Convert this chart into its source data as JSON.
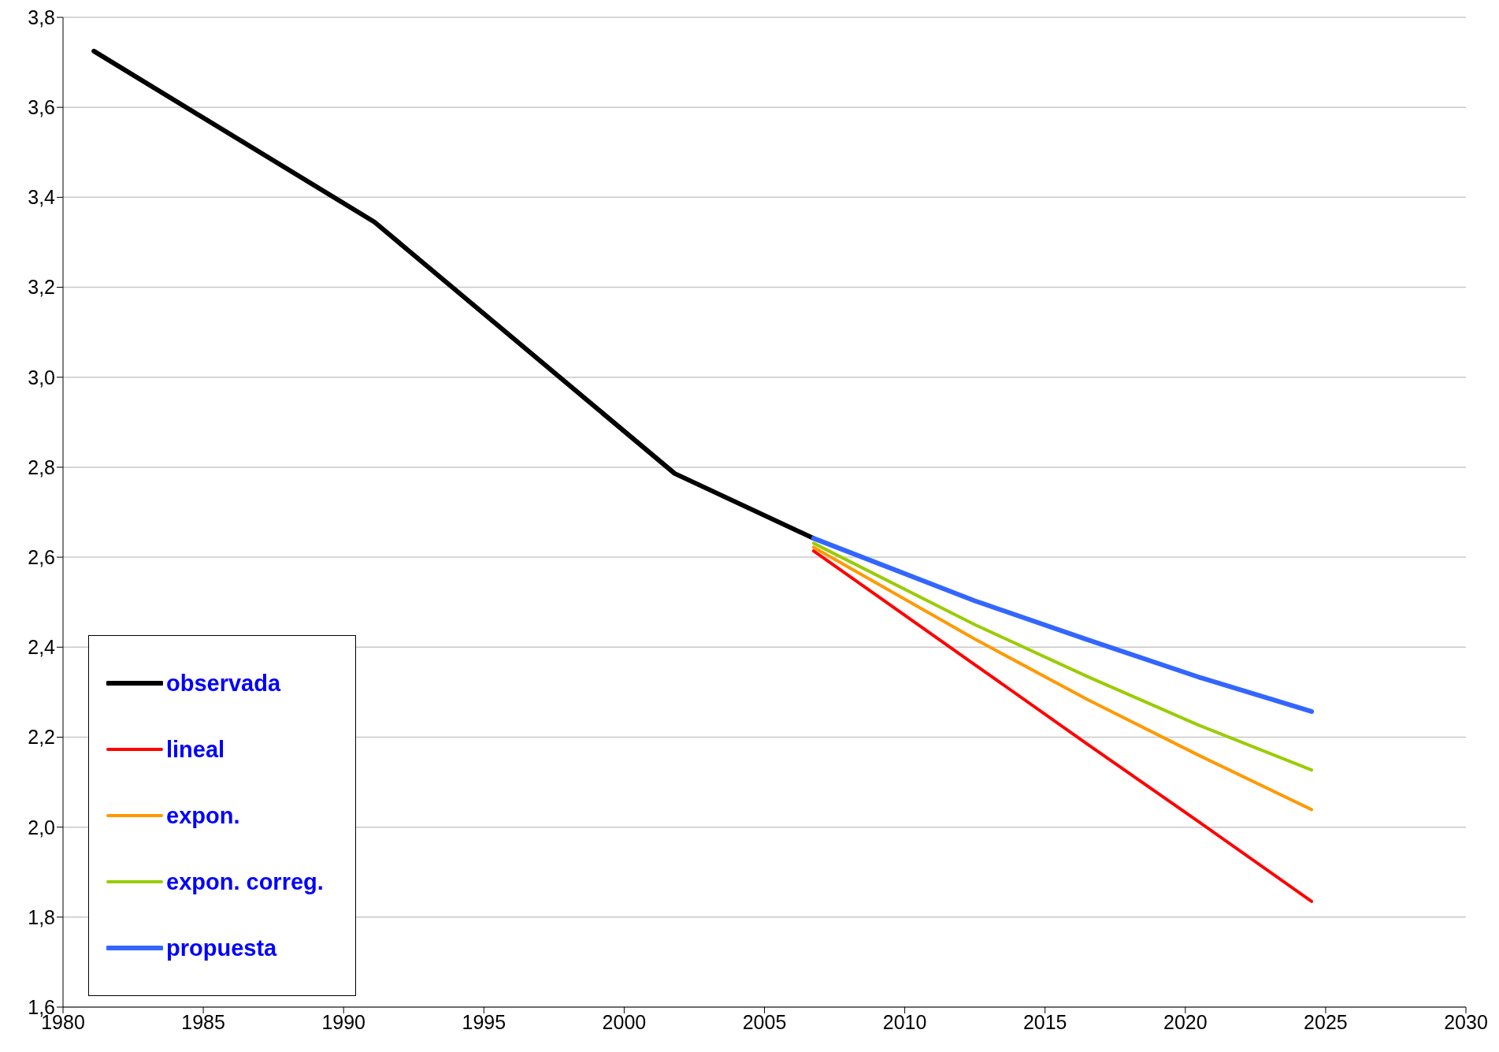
{
  "chart_data": {
    "type": "line",
    "xlim": [
      1980,
      2030
    ],
    "xticks": [
      1980,
      1985,
      1990,
      1995,
      2000,
      2005,
      2010,
      2015,
      2020,
      2025,
      2030
    ],
    "ylim": [
      1.6,
      3.8
    ],
    "yticks": [
      {
        "value": 1.6,
        "label": "1,6"
      },
      {
        "value": 1.8,
        "label": "1,8"
      },
      {
        "value": 2.0,
        "label": "2,0"
      },
      {
        "value": 2.2,
        "label": "2,2"
      },
      {
        "value": 2.4,
        "label": "2,4"
      },
      {
        "value": 2.6,
        "label": "2,6"
      },
      {
        "value": 2.8,
        "label": "2,8"
      },
      {
        "value": 3.0,
        "label": "3,0"
      },
      {
        "value": 3.2,
        "label": "3,2"
      },
      {
        "value": 3.4,
        "label": "3,4"
      },
      {
        "value": 3.6,
        "label": "3,6"
      },
      {
        "value": 3.8,
        "label": "3,8"
      }
    ],
    "grid": "y",
    "legend": "bottom left",
    "marker": "none",
    "line_style": "solid",
    "series": [
      {
        "name": "observada",
        "color": "#000000",
        "x": [
          1981.1,
          1991.1,
          2001.8,
          2006.75
        ],
        "values": [
          3.725,
          3.345,
          2.786,
          2.642
        ]
      },
      {
        "name": "lineal",
        "color": "#ff0000",
        "x": [
          2006.75,
          2012.5,
          2016.5,
          2020.5,
          2024.5
        ],
        "values": [
          2.614,
          2.361,
          2.185,
          2.011,
          1.835
        ]
      },
      {
        "name": "expon.",
        "color": "#ff9900",
        "x": [
          2006.75,
          2012.5,
          2016.5,
          2020.5,
          2024.5
        ],
        "values": [
          2.622,
          2.418,
          2.284,
          2.159,
          2.039
        ]
      },
      {
        "name": "expon. correg.",
        "color": "#99cc00",
        "x": [
          2006.75,
          2012.5,
          2016.5,
          2020.5,
          2024.5
        ],
        "values": [
          2.631,
          2.45,
          2.335,
          2.226,
          2.127
        ]
      },
      {
        "name": "propuesta",
        "color": "#3366ff",
        "x": [
          2006.75,
          2012.5,
          2016.5,
          2020.5,
          2024.5
        ],
        "values": [
          2.642,
          2.503,
          2.417,
          2.333,
          2.257
        ]
      }
    ]
  }
}
